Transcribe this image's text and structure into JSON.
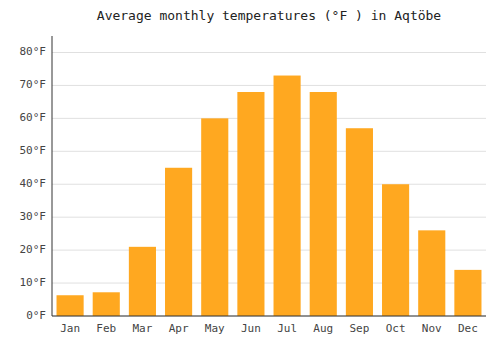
{
  "chart_data": {
    "type": "bar",
    "title": "Average monthly temperatures (°F ) in Aqtöbe",
    "categories": [
      "Jan",
      "Feb",
      "Mar",
      "Apr",
      "May",
      "Jun",
      "Jul",
      "Aug",
      "Sep",
      "Oct",
      "Nov",
      "Dec"
    ],
    "values": [
      6.3,
      7.2,
      21.0,
      45.0,
      60.0,
      68.0,
      73.0,
      68.0,
      57.0,
      40.0,
      26.0,
      14.0
    ],
    "color": "#FFA820",
    "ylim": [
      0,
      85
    ],
    "yticks": [
      {
        "value": 0,
        "label": "0°F"
      },
      {
        "value": 10,
        "label": "10°F"
      },
      {
        "value": 20,
        "label": "20°F"
      },
      {
        "value": 30,
        "label": "30°F"
      },
      {
        "value": 40,
        "label": "40°F"
      },
      {
        "value": 50,
        "label": "50°F"
      },
      {
        "value": 60,
        "label": "60°F"
      },
      {
        "value": 70,
        "label": "70°F"
      },
      {
        "value": 80,
        "label": "80°F"
      }
    ],
    "grid": true
  }
}
